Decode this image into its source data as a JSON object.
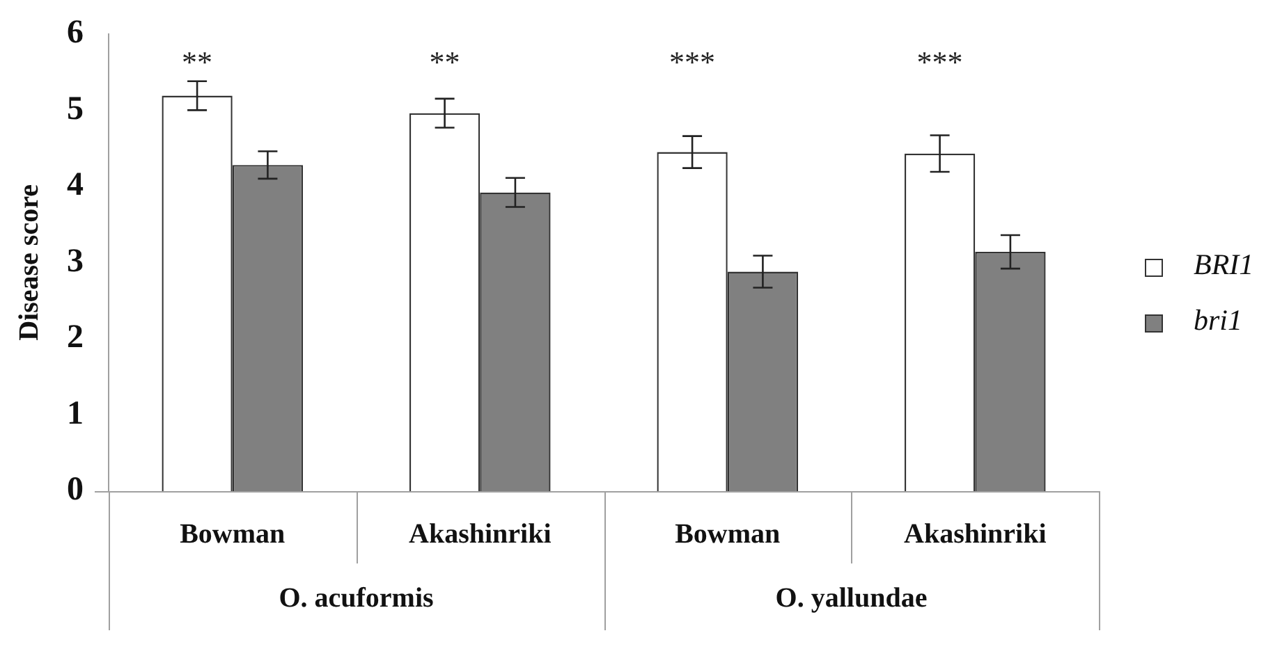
{
  "chart_data": {
    "type": "bar",
    "ylabel": "Disease score",
    "categories": [
      "Bowman",
      "Akashinriki",
      "Bowman",
      "Akashinriki"
    ],
    "series": [
      {
        "name": "BRI1",
        "color": "#ffffff",
        "values": [
          5.19,
          4.96,
          4.45,
          4.43
        ],
        "errors": [
          0.19,
          0.19,
          0.21,
          0.24
        ]
      },
      {
        "name": "bri1",
        "color": "#808080",
        "values": [
          4.28,
          3.92,
          2.88,
          3.14
        ],
        "errors": [
          0.18,
          0.19,
          0.21,
          0.22
        ]
      }
    ],
    "ylim": [
      0,
      6
    ],
    "yticks": [
      0,
      1,
      2,
      3,
      4,
      5,
      6
    ],
    "grid": false,
    "legend": "right",
    "annotations": [
      "**",
      "**",
      "***",
      "***",
      "O. acuformis",
      "O. yallundae"
    ]
  }
}
